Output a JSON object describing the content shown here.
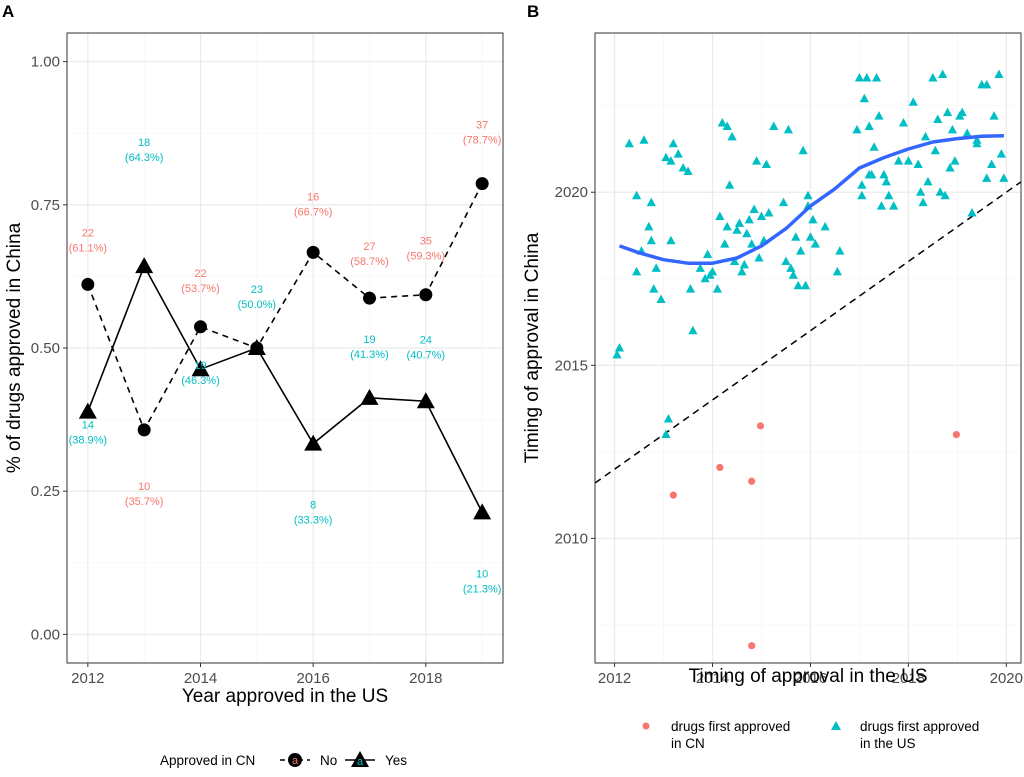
{
  "panel_a": {
    "label": "A",
    "xlabel": "Year approved in the US",
    "ylabel": "% of drugs approved in China",
    "legend_title": "Approved in CN",
    "legend_key_glyph": "a"
  },
  "panel_b": {
    "label": "B",
    "xlabel": "Timing of approval in the US",
    "ylabel": "Timing of approval in China",
    "legend_cn_1": "drugs first approved",
    "legend_cn_2": "in CN",
    "legend_us_1": "drugs first approved",
    "legend_us_2": "in the US"
  },
  "colors": {
    "no": "#F8766D",
    "yes": "#00BFC4",
    "smooth": "#3366FF",
    "grid_major": "#EBEBEB",
    "grid_minor": "#F5F5F5",
    "axis_text": "#4D4D4D"
  },
  "chart_data": [
    {
      "type": "line",
      "title": "",
      "xlabel": "Year approved in the US",
      "ylabel": "% of drugs approved in China",
      "xlim": [
        2011.63,
        2019.37
      ],
      "ylim": [
        -0.05,
        1.05
      ],
      "x_ticks": [
        2012,
        2014,
        2016,
        2018
      ],
      "x_tick_labels": [
        "2012",
        "2014",
        "2016",
        "2018"
      ],
      "y_ticks": [
        0,
        0.25,
        0.5,
        0.75,
        1
      ],
      "y_tick_labels": [
        "0.00",
        "0.25",
        "0.50",
        "0.75",
        "1.00"
      ],
      "legend_title": "Approved in CN",
      "legend_position": "bottom",
      "x": [
        2012,
        2013,
        2014,
        2015,
        2016,
        2017,
        2018,
        2019
      ],
      "series": [
        {
          "name": "No",
          "line": "dashed",
          "marker": "circle",
          "values": [
            0.611,
            0.357,
            0.537,
            0.5,
            0.667,
            0.587,
            0.593,
            0.787
          ],
          "counts": [
            "22",
            "10",
            "22",
            "",
            "16",
            "27",
            "35",
            "37"
          ],
          "percents": [
            "(61.1%)",
            "(35.7%)",
            "(53.7%)",
            "",
            "(66.7%)",
            "(58.7%)",
            "(59.3%)",
            "(78.7%)"
          ]
        },
        {
          "name": "Yes",
          "line": "solid",
          "marker": "triangle",
          "values": [
            0.389,
            0.643,
            0.463,
            0.5,
            0.333,
            0.413,
            0.407,
            0.213
          ],
          "counts": [
            "14",
            "18",
            "19",
            "23",
            "8",
            "19",
            "24",
            "10"
          ],
          "percents": [
            "(38.9%)",
            "(64.3%)",
            "(46.3%)",
            "(50.0%)",
            "(33.3%)",
            "(41.3%)",
            "(40.7%)",
            "(21.3%)"
          ]
        }
      ]
    },
    {
      "type": "scatter",
      "title": "",
      "xlabel": "Timing of approval in the US",
      "ylabel": "Timing of approval in China",
      "xlim": [
        2011.6,
        2020.3
      ],
      "ylim": [
        2006.4,
        2024.6
      ],
      "x_ticks": [
        2012,
        2014,
        2016,
        2018,
        2020
      ],
      "x_tick_labels": [
        "2012",
        "2014",
        "2016",
        "2018",
        "2020"
      ],
      "y_ticks": [
        2010,
        2015,
        2020
      ],
      "y_tick_labels": [
        "2010",
        "2015",
        "2020"
      ],
      "legend_position": "bottom",
      "reference_line": {
        "slope": 1,
        "intercept": 0,
        "style": "dashed"
      },
      "smooth_line": {
        "x": [
          2012.1,
          2012.5,
          2013,
          2013.5,
          2014,
          2014.5,
          2015,
          2015.5,
          2016,
          2016.5,
          2017,
          2017.5,
          2018,
          2018.5,
          2019,
          2019.5,
          2019.95
        ],
        "y": [
          2018.45,
          2018.25,
          2018.05,
          2017.95,
          2017.95,
          2018.1,
          2018.45,
          2018.95,
          2019.6,
          2020.1,
          2020.7,
          2021.0,
          2021.25,
          2021.45,
          2021.55,
          2021.62,
          2021.63
        ]
      },
      "series": [
        {
          "name": "drugs first approved in CN",
          "marker": "circle",
          "x": [
            2013.2,
            2014.15,
            2014.8,
            2014.98,
            2018.98,
            2014.8
          ],
          "y": [
            2011.25,
            2012.05,
            2011.65,
            2013.25,
            2013.0,
            2006.9
          ]
        },
        {
          "name": "drugs first approved in the US",
          "marker": "triangle",
          "x": [
            2012.05,
            2012.1,
            2012.3,
            2012.45,
            2012.6,
            2012.45,
            2012.55,
            2012.7,
            2012.75,
            2012.8,
            2012.75,
            2012.85,
            2012.95,
            2013.05,
            2013.1,
            2013.15,
            2013.2,
            2013.3,
            2013.4,
            2013.5,
            2013.6,
            2013.55,
            2013.75,
            2013.85,
            2013.9,
            2013.95,
            2013.15,
            2013.05,
            2014.0,
            2014.1,
            2014.15,
            2014.2,
            2014.3,
            2014.35,
            2014.4,
            2014.25,
            2014.55,
            2014.6,
            2014.7,
            2014.75,
            2014.8,
            2014.85,
            2014.5,
            2014.9,
            2014.95,
            2015.0,
            2015.05,
            2015.1,
            2015.15,
            2015.25,
            2014.3,
            2014.45,
            2014.65,
            2015.45,
            2015.5,
            2015.6,
            2015.65,
            2015.7,
            2015.8,
            2015.85,
            2015.9,
            2015.95,
            2016.0,
            2016.05,
            2016.1,
            2015.75,
            2015.55,
            2016.3,
            2016.55,
            2016.6,
            2015.95,
            2016.95,
            2017.0,
            2017.05,
            2017.1,
            2017.15,
            2017.2,
            2017.3,
            2017.4,
            2017.5,
            2017.6,
            2017.7,
            2017.8,
            2017.9,
            2017.2,
            2017.35,
            2017.55,
            2017.45,
            2018.0,
            2018.1,
            2018.2,
            2018.3,
            2018.4,
            2018.5,
            2018.6,
            2018.65,
            2018.7,
            2018.8,
            2018.85,
            2018.9,
            2018.75,
            2018.55,
            2018.35,
            2018.25,
            2019.05,
            2019.1,
            2019.2,
            2019.3,
            2019.4,
            2019.5,
            2019.6,
            2019.7,
            2019.75,
            2019.85,
            2019.9,
            2019.95,
            2019.6,
            2019.4,
            2018.95,
            2017.05,
            2017.25
          ],
          "y": [
            2015.3,
            2015.5,
            2021.4,
            2019.9,
            2021.5,
            2017.7,
            2018.3,
            2019.0,
            2018.6,
            2017.2,
            2019.7,
            2017.8,
            2016.9,
            2013.0,
            2013.45,
            2020.9,
            2021.4,
            2021.1,
            2020.7,
            2020.6,
            2016.0,
            2017.2,
            2017.8,
            2017.5,
            2018.2,
            2017.6,
            2018.6,
            2021.0,
            2017.7,
            2017.2,
            2019.3,
            2022.0,
            2021.9,
            2020.2,
            2021.6,
            2018.5,
            2019.1,
            2017.7,
            2018.8,
            2019.2,
            2018.5,
            2019.5,
            2018.9,
            2020.9,
            2018.1,
            2019.3,
            2018.6,
            2020.8,
            2019.4,
            2021.9,
            2019.0,
            2018.0,
            2017.9,
            2019.7,
            2018.0,
            2017.8,
            2017.6,
            2018.7,
            2018.3,
            2021.2,
            2017.3,
            2019.6,
            2018.7,
            2019.2,
            2018.5,
            2017.3,
            2021.8,
            2019.0,
            2017.7,
            2018.3,
            2019.9,
            2021.8,
            2023.3,
            2020.2,
            2022.7,
            2023.3,
            2021.9,
            2021.3,
            2022.2,
            2020.5,
            2019.9,
            2019.6,
            2020.9,
            2022.0,
            2020.5,
            2023.3,
            2020.3,
            2019.6,
            2020.9,
            2022.6,
            2020.8,
            2019.7,
            2020.3,
            2023.3,
            2022.1,
            2020.0,
            2023.4,
            2022.3,
            2020.7,
            2021.8,
            2019.9,
            2021.2,
            2021.6,
            2020.0,
            2022.2,
            2022.3,
            2021.7,
            2019.4,
            2021.5,
            2023.1,
            2020.4,
            2020.8,
            2022.2,
            2023.4,
            2021.1,
            2020.4,
            2023.1,
            2021.4,
            2020.9,
            2019.9,
            2020.5
          ]
        }
      ]
    }
  ]
}
